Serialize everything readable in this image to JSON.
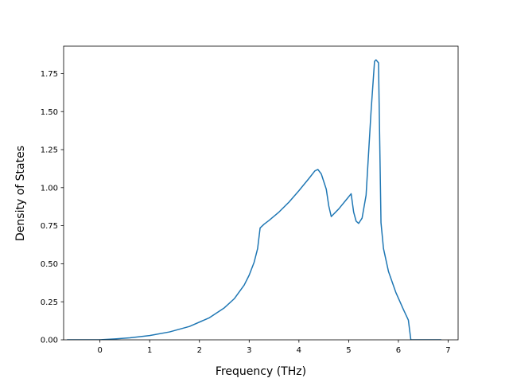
{
  "chart_data": {
    "type": "line",
    "title": "",
    "xlabel": "Frequency (THz)",
    "ylabel": "Density of States",
    "xlim": [
      -0.73,
      7.2
    ],
    "ylim": [
      0.0,
      1.93
    ],
    "x_ticks": [
      0,
      1,
      2,
      3,
      4,
      5,
      6,
      7
    ],
    "y_ticks": [
      0.0,
      0.25,
      0.5,
      0.75,
      1.0,
      1.25,
      1.5,
      1.75
    ],
    "x_tick_labels": [
      "0",
      "1",
      "2",
      "3",
      "4",
      "5",
      "6",
      "7"
    ],
    "y_tick_labels": [
      "0.00",
      "0.25",
      "0.50",
      "0.75",
      "1.00",
      "1.25",
      "1.50",
      "1.75"
    ],
    "grid": false,
    "legend": "none",
    "series": [
      {
        "color": "#1f77b4",
        "x": [
          -0.65,
          0.0,
          0.3,
          0.6,
          1.0,
          1.4,
          1.8,
          2.2,
          2.5,
          2.7,
          2.9,
          3.0,
          3.1,
          3.17,
          3.22,
          3.3,
          3.4,
          3.6,
          3.8,
          4.0,
          4.2,
          4.32,
          4.38,
          4.45,
          4.55,
          4.6,
          4.65,
          4.8,
          4.95,
          5.05,
          5.1,
          5.15,
          5.2,
          5.27,
          5.35,
          5.45,
          5.52,
          5.55,
          5.6,
          5.65,
          5.7,
          5.8,
          5.95,
          6.1,
          6.2,
          6.25,
          6.5,
          6.85
        ],
        "y": [
          0.0,
          0.0,
          0.006,
          0.013,
          0.028,
          0.052,
          0.088,
          0.145,
          0.21,
          0.27,
          0.36,
          0.425,
          0.51,
          0.6,
          0.735,
          0.76,
          0.785,
          0.84,
          0.905,
          0.98,
          1.06,
          1.11,
          1.12,
          1.09,
          0.99,
          0.88,
          0.81,
          0.86,
          0.92,
          0.96,
          0.84,
          0.78,
          0.765,
          0.8,
          0.95,
          1.5,
          1.83,
          1.84,
          1.82,
          0.77,
          0.6,
          0.45,
          0.31,
          0.2,
          0.13,
          0.0,
          0.0,
          0.0
        ]
      }
    ]
  }
}
